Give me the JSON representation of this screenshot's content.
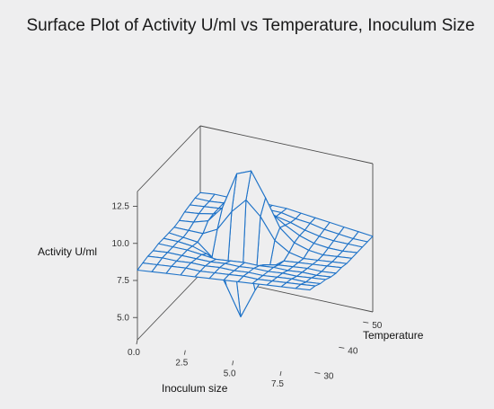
{
  "chart_data": {
    "type": "surface",
    "title": "Surface Plot of Activity U/ml vs Temperature, Inoculum Size",
    "xlabel": "Inoculum size",
    "ylabel": "Temperature",
    "zlabel": "Activity U/ml",
    "xlim": [
      0,
      9
    ],
    "ylim": [
      28,
      54
    ],
    "zlim": [
      3.5,
      13.5
    ],
    "xticks": [
      "0.0",
      "2.5",
      "5.0",
      "7.5"
    ],
    "yticks": [
      "30",
      "40",
      "50"
    ],
    "zticks": [
      "5.0",
      "7.5",
      "10.0",
      "12.5"
    ],
    "x": [
      0,
      0.75,
      1.5,
      2.25,
      3,
      3.75,
      4.5,
      5.25,
      6,
      6.75,
      7.5,
      8.25,
      9
    ],
    "y": [
      28,
      30.2,
      32.3,
      34.5,
      36.7,
      38.8,
      41,
      43.2,
      45.3,
      47.5,
      49.7,
      51.8,
      54
    ],
    "z": [
      [
        8.2,
        8.3,
        8.4,
        8.5,
        8.6,
        8.7,
        8.8,
        8.9,
        9.0,
        9.1,
        9.2,
        9.3,
        9.4
      ],
      [
        8.3,
        8.4,
        8.5,
        8.6,
        8.6,
        8.7,
        8.8,
        8.9,
        8.9,
        9.0,
        9.1,
        9.2,
        9.3
      ],
      [
        8.4,
        8.5,
        8.5,
        8.6,
        8.6,
        8.7,
        8.7,
        8.8,
        8.8,
        8.9,
        9.0,
        9.0,
        9.1
      ],
      [
        8.4,
        8.5,
        8.5,
        8.5,
        8.5,
        8.6,
        8.6,
        8.7,
        8.7,
        8.8,
        8.8,
        8.9,
        9.0
      ],
      [
        8.5,
        8.5,
        8.5,
        8.4,
        8.3,
        8.4,
        8.5,
        8.5,
        8.6,
        8.6,
        8.7,
        8.7,
        8.8
      ],
      [
        8.5,
        8.5,
        8.4,
        8.1,
        7.6,
        7.4,
        7.8,
        8.2,
        8.4,
        8.5,
        8.6,
        8.6,
        8.7
      ],
      [
        8.5,
        8.4,
        8.3,
        7.5,
        5.8,
        3.9,
        5.9,
        7.6,
        8.3,
        8.4,
        8.5,
        8.6,
        8.7
      ],
      [
        8.5,
        8.5,
        8.5,
        9.0,
        10.4,
        11.4,
        10.5,
        9.1,
        8.5,
        8.3,
        8.4,
        8.5,
        8.6
      ],
      [
        8.6,
        8.7,
        9.0,
        10.1,
        12.6,
        13.0,
        11.4,
        9.6,
        8.8,
        8.5,
        8.4,
        8.5,
        8.6
      ],
      [
        8.8,
        8.9,
        9.1,
        9.6,
        10.2,
        10.4,
        10.0,
        9.4,
        8.9,
        8.6,
        8.5,
        8.5,
        8.6
      ],
      [
        8.9,
        9.0,
        9.1,
        9.3,
        9.5,
        9.6,
        9.4,
        9.2,
        8.9,
        8.7,
        8.6,
        8.6,
        8.6
      ],
      [
        9.0,
        9.0,
        9.1,
        9.2,
        9.3,
        9.3,
        9.3,
        9.1,
        9.0,
        8.8,
        8.7,
        8.6,
        8.6
      ],
      [
        9.0,
        9.1,
        9.1,
        9.2,
        9.2,
        9.2,
        9.2,
        9.1,
        9.0,
        8.9,
        8.8,
        8.7,
        8.6
      ]
    ],
    "surface_color": "#1f73c8",
    "box_color": "#4a4a4a",
    "background": "#eeeeef",
    "grid": false
  }
}
